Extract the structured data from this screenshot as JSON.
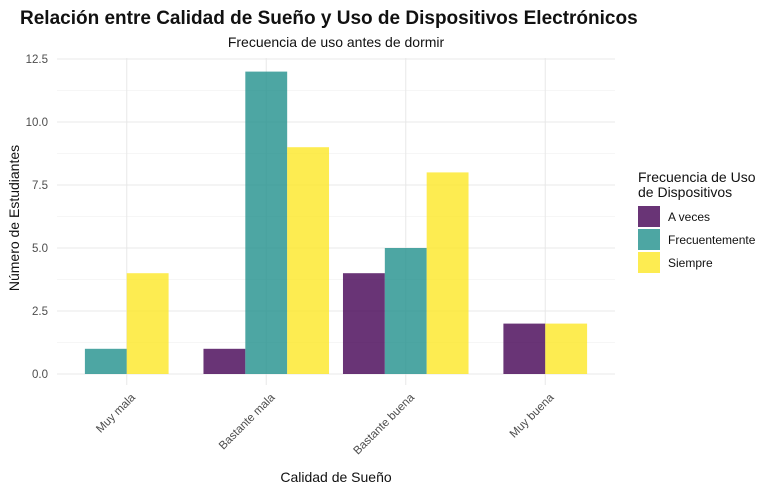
{
  "chart_data": {
    "type": "bar",
    "title": "Relación entre Calidad de Sueño y Uso de Dispositivos Electrónicos",
    "subtitle": "Frecuencia de uso antes de dormir",
    "xlabel": "Calidad de Sueño",
    "ylabel": "Número de Estudiantes",
    "categories": [
      "Muy mala",
      "Bastante mala",
      "Bastante buena",
      "Muy buena"
    ],
    "ylim": [
      0,
      12.5
    ],
    "yticks": [
      "0.0",
      "2.5",
      "5.0",
      "7.5",
      "10.0",
      "12.5"
    ],
    "legend": {
      "title_lines": [
        "Frecuencia de Uso",
        "de Dispositivos"
      ],
      "placement": "right"
    },
    "grid": true,
    "series": [
      {
        "name": "A veces",
        "color": "#440154",
        "values": [
          null,
          1,
          4,
          2
        ]
      },
      {
        "name": "Frecuentemente",
        "color": "#21908C",
        "values": [
          1,
          12,
          5,
          null
        ]
      },
      {
        "name": "Siempre",
        "color": "#FDE725",
        "values": [
          4,
          9,
          8,
          2
        ]
      }
    ]
  }
}
